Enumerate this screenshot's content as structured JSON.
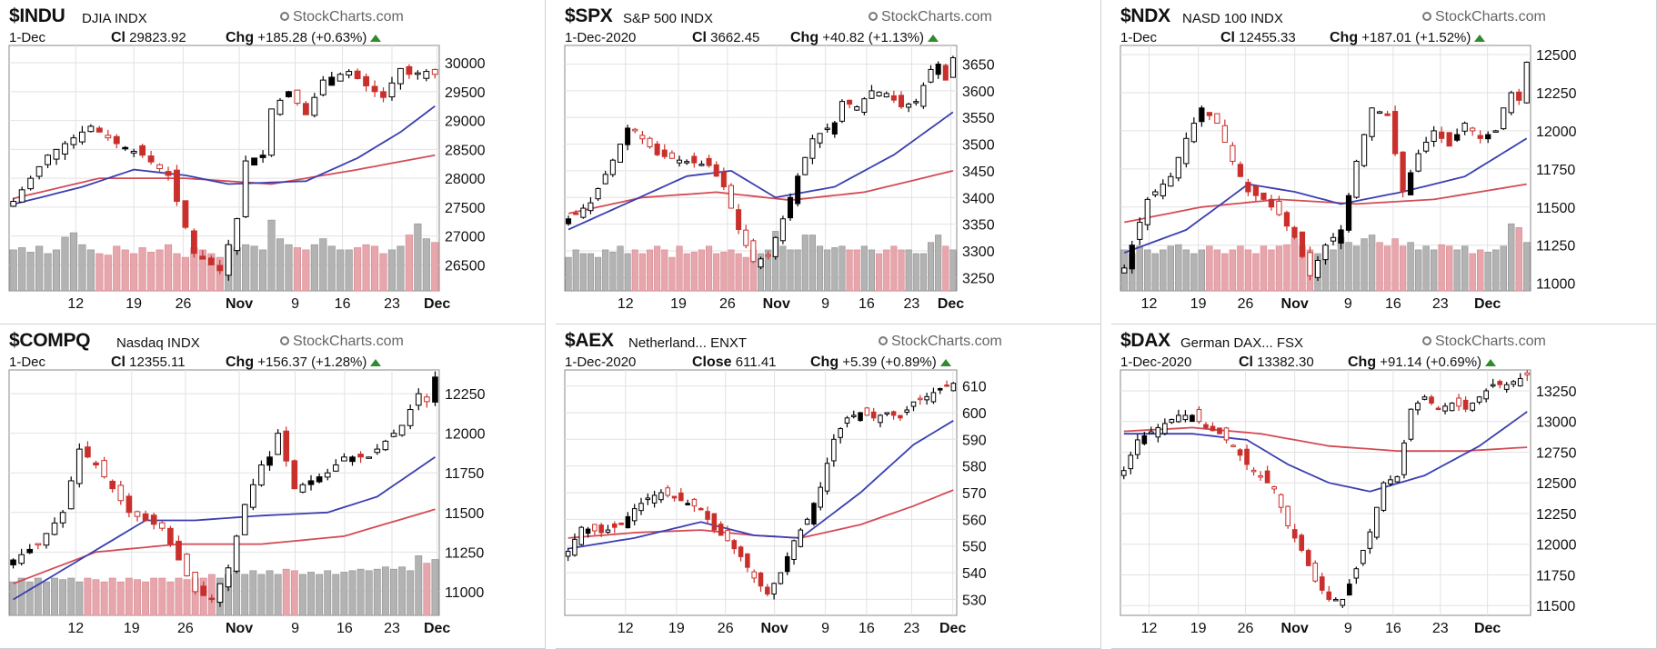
{
  "colors": {
    "up": "#000000",
    "down": "#c9302c",
    "ma_fast": "#3a3fb0",
    "ma_slow": "#d34b55",
    "vol_up": "#b3b3b3",
    "vol_down": "#e7a6ac",
    "watermark": "#666666",
    "arrow": "#2e8b2e"
  },
  "x_tick_labels": [
    "12",
    "19",
    "26",
    "Nov",
    "9",
    "16",
    "23",
    "Dec"
  ],
  "chart_data": [
    {
      "type": "candlestick",
      "symbol": "$INDU",
      "name": "DJIA",
      "exchange": "INDX",
      "watermark": "StockCharts.com",
      "date": "1-Dec",
      "close_label": "Cl",
      "close": "29823.92",
      "chg_label": "Chg",
      "chg": "+185.28 (+0.63%)",
      "yticks": [
        30000,
        29500,
        29000,
        28500,
        28000,
        27500,
        27000,
        26500
      ],
      "ylim": [
        26050,
        30300
      ],
      "anchors": [
        [
          0,
          27600
        ],
        [
          4,
          28400
        ],
        [
          9,
          28900
        ],
        [
          12,
          28600
        ],
        [
          15,
          28400
        ],
        [
          18,
          28050
        ],
        [
          19,
          27600
        ],
        [
          21,
          26700
        ],
        [
          24,
          26400
        ],
        [
          26,
          27300
        ],
        [
          27,
          28300
        ],
        [
          29,
          28400
        ],
        [
          30,
          29200
        ],
        [
          32,
          29500
        ],
        [
          34,
          29100
        ],
        [
          36,
          29700
        ],
        [
          39,
          29850
        ],
        [
          41,
          29600
        ],
        [
          43,
          29400
        ],
        [
          45,
          29900
        ],
        [
          46,
          29800
        ],
        [
          48,
          29850
        ],
        [
          49,
          29800
        ]
      ],
      "ma_fast": [
        [
          0,
          27550
        ],
        [
          8,
          27850
        ],
        [
          14,
          28150
        ],
        [
          20,
          28050
        ],
        [
          25,
          27900
        ],
        [
          34,
          27950
        ],
        [
          40,
          28350
        ],
        [
          45,
          28800
        ],
        [
          49,
          29250
        ]
      ],
      "ma_slow": [
        [
          0,
          27650
        ],
        [
          10,
          28000
        ],
        [
          20,
          28000
        ],
        [
          30,
          27900
        ],
        [
          40,
          28150
        ],
        [
          49,
          28400
        ]
      ],
      "volume": [
        0.55,
        0.58,
        0.52,
        0.6,
        0.5,
        0.55,
        0.72,
        0.78,
        0.62,
        0.55,
        0.5,
        0.48,
        0.6,
        0.55,
        0.5,
        0.58,
        0.52,
        0.55,
        0.62,
        0.5,
        0.45,
        0.58,
        0.55,
        0.5,
        0.45,
        0.62,
        0.58,
        0.62,
        0.6,
        0.55,
        0.95,
        0.7,
        0.62,
        0.58,
        0.55,
        0.62,
        0.7,
        0.6,
        0.55,
        0.55,
        0.58,
        0.62,
        0.6,
        0.5,
        0.55,
        0.6,
        0.75,
        0.9,
        0.7,
        0.65
      ]
    },
    {
      "type": "candlestick",
      "symbol": "$SPX",
      "name": "S&P 500",
      "exchange": "INDX",
      "watermark": "StockCharts.com",
      "date": "1-Dec-2020",
      "close_label": "Cl",
      "close": "3662.45",
      "chg_label": "Chg",
      "chg": "+40.82 (+1.13%)",
      "yticks": [
        3650,
        3600,
        3550,
        3500,
        3450,
        3400,
        3350,
        3300,
        3250
      ],
      "ylim": [
        3225,
        3685
      ],
      "anchors": [
        [
          0,
          3360
        ],
        [
          3,
          3390
        ],
        [
          6,
          3470
        ],
        [
          8,
          3530
        ],
        [
          9,
          3525
        ],
        [
          12,
          3480
        ],
        [
          15,
          3470
        ],
        [
          19,
          3460
        ],
        [
          21,
          3420
        ],
        [
          23,
          3340
        ],
        [
          25,
          3280
        ],
        [
          27,
          3290
        ],
        [
          29,
          3360
        ],
        [
          31,
          3440
        ],
        [
          33,
          3510
        ],
        [
          36,
          3540
        ],
        [
          37,
          3580
        ],
        [
          39,
          3570
        ],
        [
          41,
          3600
        ],
        [
          43,
          3595
        ],
        [
          45,
          3570
        ],
        [
          47,
          3580
        ],
        [
          49,
          3640
        ],
        [
          50,
          3650
        ],
        [
          51,
          3620
        ],
        [
          52,
          3662
        ]
      ],
      "ma_fast": [
        [
          0,
          3340
        ],
        [
          8,
          3390
        ],
        [
          16,
          3440
        ],
        [
          22,
          3450
        ],
        [
          28,
          3400
        ],
        [
          36,
          3420
        ],
        [
          44,
          3480
        ],
        [
          52,
          3560
        ]
      ],
      "ma_slow": [
        [
          0,
          3370
        ],
        [
          10,
          3400
        ],
        [
          20,
          3410
        ],
        [
          30,
          3395
        ],
        [
          40,
          3410
        ],
        [
          52,
          3450
        ]
      ],
      "volume": [
        0.45,
        0.55,
        0.5,
        0.5,
        0.45,
        0.55,
        0.52,
        0.6,
        0.5,
        0.55,
        0.5,
        0.55,
        0.6,
        0.55,
        0.45,
        0.6,
        0.5,
        0.52,
        0.55,
        0.6,
        0.5,
        0.52,
        0.55,
        0.5,
        0.45,
        0.55,
        0.5,
        0.55,
        0.8,
        0.6,
        0.55,
        0.55,
        0.75,
        0.75,
        0.6,
        0.55,
        0.58,
        0.6,
        0.55,
        0.55,
        0.6,
        0.55,
        0.5,
        0.55,
        0.6,
        0.55,
        0.55,
        0.5,
        0.5,
        0.65,
        0.75,
        0.6,
        0.55
      ]
    },
    {
      "type": "candlestick",
      "symbol": "$NDX",
      "name": "NASD 100",
      "exchange": "INDX",
      "watermark": "StockCharts.com",
      "date": "1-Dec",
      "close_label": "Cl",
      "close": "12455.33",
      "chg_label": "Chg",
      "chg": "+187.01 (+1.52%)",
      "yticks": [
        12500,
        12250,
        12000,
        11750,
        11500,
        11250,
        11000
      ],
      "ylim": [
        10950,
        12560
      ],
      "anchors": [
        [
          0,
          11100
        ],
        [
          3,
          11550
        ],
        [
          6,
          11700
        ],
        [
          8,
          11950
        ],
        [
          10,
          12150
        ],
        [
          12,
          12050
        ],
        [
          14,
          11800
        ],
        [
          16,
          11600
        ],
        [
          18,
          11550
        ],
        [
          20,
          11450
        ],
        [
          22,
          11300
        ],
        [
          24,
          11050
        ],
        [
          26,
          11250
        ],
        [
          28,
          11350
        ],
        [
          30,
          11800
        ],
        [
          32,
          12150
        ],
        [
          34,
          12100
        ],
        [
          36,
          11600
        ],
        [
          38,
          11850
        ],
        [
          40,
          12000
        ],
        [
          42,
          11900
        ],
        [
          44,
          12050
        ],
        [
          46,
          11950
        ],
        [
          48,
          12000
        ],
        [
          49,
          12150
        ],
        [
          50,
          12250
        ],
        [
          51,
          12200
        ],
        [
          52,
          12450
        ]
      ],
      "ma_fast": [
        [
          0,
          11200
        ],
        [
          8,
          11350
        ],
        [
          16,
          11650
        ],
        [
          22,
          11600
        ],
        [
          28,
          11520
        ],
        [
          36,
          11600
        ],
        [
          44,
          11700
        ],
        [
          52,
          11950
        ]
      ],
      "ma_slow": [
        [
          0,
          11400
        ],
        [
          10,
          11500
        ],
        [
          20,
          11550
        ],
        [
          30,
          11520
        ],
        [
          40,
          11550
        ],
        [
          52,
          11650
        ]
      ],
      "volume": [
        0.55,
        0.5,
        0.6,
        0.55,
        0.5,
        0.55,
        0.6,
        0.62,
        0.55,
        0.5,
        0.55,
        0.6,
        0.55,
        0.5,
        0.55,
        0.6,
        0.55,
        0.5,
        0.6,
        0.55,
        0.6,
        0.62,
        0.7,
        0.6,
        0.55,
        0.5,
        0.6,
        0.55,
        0.72,
        0.65,
        0.6,
        0.7,
        0.75,
        0.65,
        0.6,
        0.7,
        0.6,
        0.65,
        0.55,
        0.6,
        0.55,
        0.62,
        0.6,
        0.55,
        0.6,
        0.5,
        0.55,
        0.52,
        0.55,
        0.6,
        0.9,
        0.85,
        0.65
      ]
    },
    {
      "type": "candlestick",
      "symbol": "$COMPQ",
      "name": "Nasdaq",
      "exchange": "INDX",
      "watermark": "StockCharts.com",
      "date": "1-Dec",
      "close_label": "Cl",
      "close": "12355.11",
      "chg_label": "Chg",
      "chg": "+156.37 (+1.28%)",
      "yticks": [
        12250,
        12000,
        11750,
        11500,
        11250,
        11000
      ],
      "ylim": [
        10850,
        12400
      ],
      "anchors": [
        [
          0,
          11200
        ],
        [
          3,
          11300
        ],
        [
          6,
          11500
        ],
        [
          8,
          11900
        ],
        [
          10,
          11800
        ],
        [
          12,
          11650
        ],
        [
          14,
          11500
        ],
        [
          16,
          11450
        ],
        [
          18,
          11400
        ],
        [
          20,
          11200
        ],
        [
          22,
          11000
        ],
        [
          24,
          10950
        ],
        [
          26,
          11150
        ],
        [
          28,
          11550
        ],
        [
          30,
          11800
        ],
        [
          31,
          11850
        ],
        [
          32,
          12000
        ],
        [
          34,
          11650
        ],
        [
          36,
          11700
        ],
        [
          38,
          11750
        ],
        [
          40,
          11850
        ],
        [
          43,
          11850
        ],
        [
          45,
          11950
        ],
        [
          47,
          12050
        ],
        [
          48,
          12150
        ],
        [
          49,
          12250
        ],
        [
          50,
          12200
        ],
        [
          51,
          12355
        ]
      ],
      "ma_fast": [
        [
          0,
          10950
        ],
        [
          8,
          11200
        ],
        [
          16,
          11450
        ],
        [
          22,
          11450
        ],
        [
          30,
          11480
        ],
        [
          38,
          11500
        ],
        [
          44,
          11600
        ],
        [
          51,
          11850
        ]
      ],
      "ma_slow": [
        [
          0,
          11050
        ],
        [
          10,
          11250
        ],
        [
          20,
          11300
        ],
        [
          30,
          11300
        ],
        [
          40,
          11350
        ],
        [
          51,
          11520
        ]
      ],
      "volume": [
        0.45,
        0.5,
        0.45,
        0.5,
        0.45,
        0.5,
        0.48,
        0.5,
        0.45,
        0.5,
        0.48,
        0.45,
        0.5,
        0.45,
        0.5,
        0.48,
        0.45,
        0.5,
        0.5,
        0.45,
        0.5,
        0.48,
        0.5,
        0.5,
        0.55,
        0.5,
        0.55,
        0.6,
        0.55,
        0.6,
        0.55,
        0.6,
        0.55,
        0.62,
        0.6,
        0.55,
        0.58,
        0.55,
        0.6,
        0.55,
        0.58,
        0.6,
        0.62,
        0.6,
        0.62,
        0.65,
        0.62,
        0.65,
        0.6,
        0.8,
        0.7,
        0.75
      ]
    },
    {
      "type": "candlestick",
      "symbol": "$AEX",
      "name": "Netherland...",
      "exchange": "ENXT",
      "watermark": "StockCharts.com",
      "date": "1-Dec-2020",
      "close_label": "Close",
      "close": "611.41",
      "chg_label": "Chg",
      "chg": "+5.39 (+0.89%)",
      "yticks": [
        610,
        600,
        590,
        580,
        570,
        560,
        550,
        540,
        530
      ],
      "ylim": [
        524,
        616
      ],
      "anchors": [
        [
          0,
          548
        ],
        [
          2,
          557
        ],
        [
          5,
          555
        ],
        [
          8,
          558
        ],
        [
          10,
          564
        ],
        [
          12,
          568
        ],
        [
          14,
          570
        ],
        [
          16,
          568
        ],
        [
          18,
          566
        ],
        [
          20,
          564
        ],
        [
          22,
          556
        ],
        [
          24,
          552
        ],
        [
          26,
          546
        ],
        [
          28,
          538
        ],
        [
          30,
          532
        ],
        [
          32,
          540
        ],
        [
          34,
          552
        ],
        [
          36,
          560
        ],
        [
          38,
          572
        ],
        [
          40,
          590
        ],
        [
          42,
          598
        ],
        [
          44,
          600
        ],
        [
          46,
          598
        ],
        [
          48,
          600
        ],
        [
          50,
          598
        ],
        [
          52,
          604
        ],
        [
          54,
          606
        ],
        [
          56,
          609
        ],
        [
          58,
          611
        ]
      ],
      "ma_fast": [
        [
          0,
          549
        ],
        [
          10,
          553
        ],
        [
          20,
          559
        ],
        [
          28,
          554
        ],
        [
          35,
          553
        ],
        [
          44,
          570
        ],
        [
          52,
          588
        ],
        [
          58,
          597
        ]
      ],
      "ma_slow": [
        [
          0,
          553
        ],
        [
          10,
          555
        ],
        [
          20,
          556
        ],
        [
          28,
          554
        ],
        [
          35,
          553
        ],
        [
          44,
          558
        ],
        [
          52,
          565
        ],
        [
          58,
          571
        ]
      ],
      "volume": []
    },
    {
      "type": "candlestick",
      "symbol": "$DAX",
      "name": "German DAX...",
      "exchange": "FSX",
      "watermark": "StockCharts.com",
      "date": "1-Dec-2020",
      "close_label": "Cl",
      "close": "13382.30",
      "chg_label": "Chg",
      "chg": "+91.14 (+0.69%)",
      "yticks": [
        13250,
        13000,
        12750,
        12500,
        12250,
        12000,
        11750,
        11500
      ],
      "ylim": [
        11420,
        13420
      ],
      "anchors": [
        [
          0,
          12600
        ],
        [
          2,
          12850
        ],
        [
          5,
          12950
        ],
        [
          8,
          13050
        ],
        [
          10,
          13050
        ],
        [
          12,
          12950
        ],
        [
          14,
          12900
        ],
        [
          16,
          12800
        ],
        [
          18,
          12650
        ],
        [
          20,
          12550
        ],
        [
          22,
          12450
        ],
        [
          24,
          12150
        ],
        [
          26,
          11950
        ],
        [
          28,
          11700
        ],
        [
          30,
          11550
        ],
        [
          32,
          11550
        ],
        [
          34,
          11800
        ],
        [
          36,
          12100
        ],
        [
          38,
          12500
        ],
        [
          40,
          12550
        ],
        [
          42,
          13100
        ],
        [
          44,
          13200
        ],
        [
          46,
          13100
        ],
        [
          48,
          13150
        ],
        [
          50,
          13100
        ],
        [
          52,
          13200
        ],
        [
          54,
          13300
        ],
        [
          56,
          13300
        ],
        [
          58,
          13350
        ],
        [
          59,
          13380
        ]
      ],
      "ma_fast": [
        [
          0,
          12900
        ],
        [
          10,
          12900
        ],
        [
          18,
          12850
        ],
        [
          24,
          12650
        ],
        [
          30,
          12500
        ],
        [
          36,
          12430
        ],
        [
          44,
          12560
        ],
        [
          52,
          12800
        ],
        [
          59,
          13080
        ]
      ],
      "ma_slow": [
        [
          0,
          12920
        ],
        [
          10,
          12950
        ],
        [
          20,
          12900
        ],
        [
          30,
          12800
        ],
        [
          40,
          12760
        ],
        [
          50,
          12760
        ],
        [
          59,
          12790
        ]
      ],
      "volume": []
    }
  ]
}
